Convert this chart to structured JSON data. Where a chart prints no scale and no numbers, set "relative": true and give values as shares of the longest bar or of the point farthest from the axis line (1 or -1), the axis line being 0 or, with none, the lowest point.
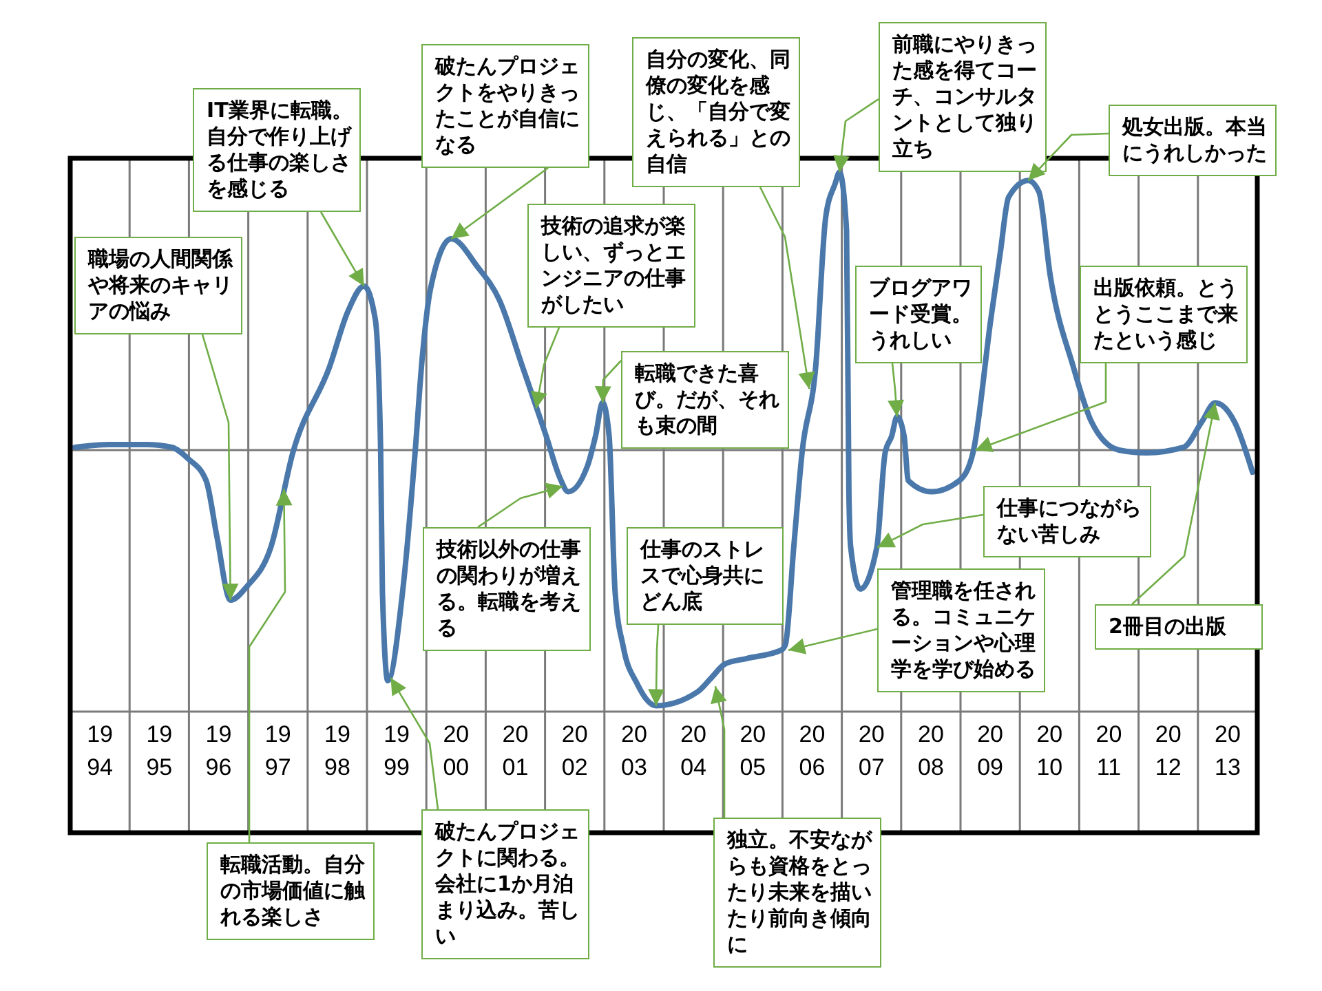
{
  "chart_data": {
    "type": "line",
    "relative": true,
    "x": [
      1993.58,
      1994.16,
      1994.79,
      1995.21,
      1995.48,
      1995.79,
      1995.97,
      1996.2,
      1996.48,
      1996.88,
      1997.25,
      1997.87,
      1998.18,
      1998.45,
      1998.64,
      1998.73,
      1998.76,
      1998.85,
      1999.1,
      1999.31,
      1999.43,
      1999.57,
      1999.92,
      2000.36,
      2000.73,
      2001.12,
      2001.52,
      2001.75,
      2001.89,
      2002.21,
      2002.35,
      2002.47,
      2002.58,
      2002.68,
      2002.82,
      2003.05,
      2003.37,
      2004.07,
      2004.3,
      2004.53,
      2004.9,
      2005.48,
      2005.55,
      2005.69,
      2005.83,
      2006.06,
      2006.23,
      2006.39,
      2006.46,
      2006.58,
      2006.62,
      2006.65,
      2006.81,
      2007.09,
      2007.23,
      2007.34,
      2007.43,
      2007.55,
      2007.62,
      2008.01,
      2008.48,
      2008.71,
      2009.01,
      2009.17,
      2009.31,
      2009.64,
      2009.82,
      2010.01,
      2010.4,
      2010.71,
      2011.17,
      2011.63,
      2012.26,
      2012.56,
      2012.79,
      2013.12,
      2013.42
    ],
    "values": [
      0.01,
      0.02,
      0.02,
      0.01,
      -0.03,
      -0.11,
      -0.31,
      -0.54,
      -0.49,
      -0.35,
      -0.01,
      0.3,
      0.5,
      0.59,
      0.47,
      0.0,
      -0.51,
      -0.83,
      -0.51,
      -0.01,
      0.33,
      0.58,
      0.76,
      0.66,
      0.54,
      0.3,
      0.05,
      -0.1,
      -0.15,
      -0.06,
      0.05,
      0.17,
      0.05,
      -0.51,
      -0.71,
      -0.84,
      -0.92,
      -0.87,
      -0.82,
      -0.77,
      -0.75,
      -0.72,
      -0.7,
      -0.35,
      -0.01,
      0.3,
      0.84,
      0.96,
      1.0,
      0.79,
      -0.16,
      -0.35,
      -0.5,
      -0.35,
      -0.01,
      0.05,
      0.12,
      0.05,
      -0.11,
      -0.15,
      -0.11,
      -0.01,
      0.47,
      0.71,
      0.91,
      0.97,
      0.93,
      0.63,
      0.3,
      0.1,
      0.0,
      -0.01,
      0.01,
      0.1,
      0.17,
      0.1,
      -0.08
    ],
    "color": "#4a78aa",
    "marker": "none",
    "grid": "x",
    "xlim": [
      1993.5,
      2013.5
    ],
    "xticks": [
      1994,
      1995,
      1996,
      1997,
      1998,
      1999,
      2000,
      2001,
      2002,
      2003,
      2004,
      2005,
      2006,
      2007,
      2008,
      2009,
      2010,
      2011,
      2012,
      2013
    ],
    "annotations": [
      {
        "text": "職場の人間関係や将来のキャリアの悩み",
        "x": 1996.2,
        "y": -0.54
      },
      {
        "text": "IT業界に転職。自分で作り上げる仕事の楽しさを感じる",
        "x": 1998.45,
        "y": 0.59
      },
      {
        "text": "破たんプロジェクトをやりきったことが自信になる",
        "x": 1999.92,
        "y": 0.76
      },
      {
        "text": "技術の追求が楽しい、ずっとエンジニアの仕事がしたい",
        "x": 2001.35,
        "y": 0.15
      },
      {
        "text": "転職できた喜び。だが、それも束の間",
        "x": 2002.47,
        "y": 0.17
      },
      {
        "text": "自分の変化、同僚の変化を感じ、「自分で変えられる」との自信",
        "x": 2005.95,
        "y": 0.22
      },
      {
        "text": "前職にやりきった感を得てコーチ、コンサルタントとして独り立ち",
        "x": 2006.46,
        "y": 1.0
      },
      {
        "text": "ブログアワード受賞。うれしい",
        "x": 2007.43,
        "y": 0.12
      },
      {
        "text": "処女出版。本当にうれしかった",
        "x": 2009.64,
        "y": 0.97
      },
      {
        "text": "出版依頼。とうとうここまで来たという感じ",
        "x": 2008.75,
        "y": 0
      },
      {
        "text": "仕事につながらない苦しみ",
        "x": 2007.1,
        "y": -0.35
      },
      {
        "text": "管理職を任される。コミュニケーションや心理学を学び始める",
        "x": 2005.6,
        "y": -0.72
      },
      {
        "text": "2冊目の出版",
        "x": 2012.79,
        "y": 0.17
      },
      {
        "text": "転職活動。自分の市場価値に触れる楽しさ",
        "x": 1997.1,
        "y": -0.14
      },
      {
        "text": "破たんプロジェクトに関わる。会社に1か月泊まり込み。苦しい",
        "x": 1998.9,
        "y": -0.82
      },
      {
        "text": "技術以外の仕事の関わりが増える。転職を考える",
        "x": 2001.8,
        "y": -0.13
      },
      {
        "text": "仕事のストレスで心身共にどん底",
        "x": 2003.37,
        "y": -0.92
      },
      {
        "text": "独立。不安ながらも資格をとったり未来を描いたり前向き傾向に",
        "x": 2004.37,
        "y": -0.85
      }
    ]
  }
}
